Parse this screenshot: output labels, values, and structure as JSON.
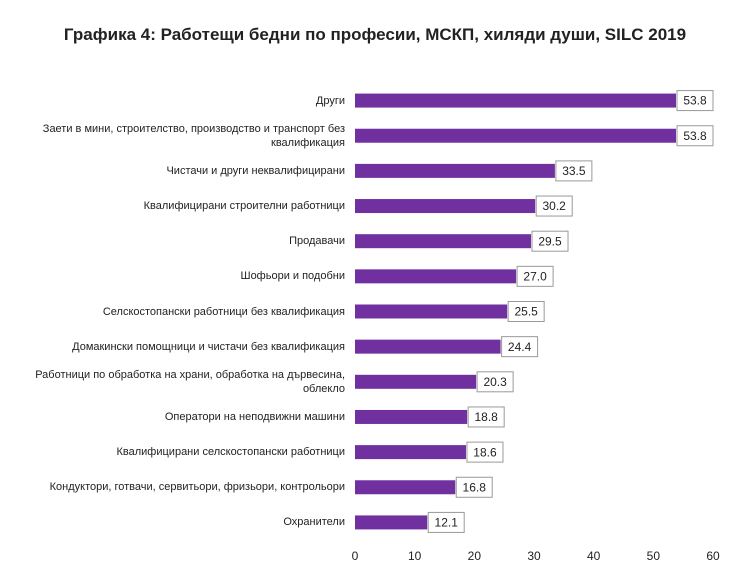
{
  "chart_data": {
    "type": "bar",
    "orientation": "horizontal",
    "title": "Графика 4: Работещи бедни по професии, МСКП, хиляди души, SILC 2019",
    "categories": [
      "Други",
      "Заети в мини, строителство, производство и транспорт без квалификация",
      "Чистачи и други неквалифицирани",
      "Квалифицирани строителни работници",
      "Продавачи",
      "Шофьори и подобни",
      "Селскостопански работници без квалификация",
      "Домакински помощници и чистачи без квалификация",
      "Работници по обработка на храни, обработка на дървесина, облекло",
      "Оператори на неподвижни машини",
      "Квалифицирани селскостопански работници",
      "Кондуктори, готвачи, сервитьори, фризьори, контрольори",
      "Охранители"
    ],
    "values": [
      53.8,
      53.8,
      33.5,
      30.2,
      29.5,
      27.0,
      25.5,
      24.4,
      20.3,
      18.8,
      18.6,
      16.8,
      12.1
    ],
    "value_labels": [
      "53.8",
      "53.8",
      "33.5",
      "30.2",
      "29.5",
      "27.0",
      "25.5",
      "24.4",
      "20.3",
      "18.8",
      "18.6",
      "16.8",
      "12.1"
    ],
    "color": "#7030a0",
    "xlim": [
      0,
      60
    ],
    "xticks": [
      0,
      10,
      20,
      30,
      40,
      50,
      60
    ],
    "grid": false
  }
}
